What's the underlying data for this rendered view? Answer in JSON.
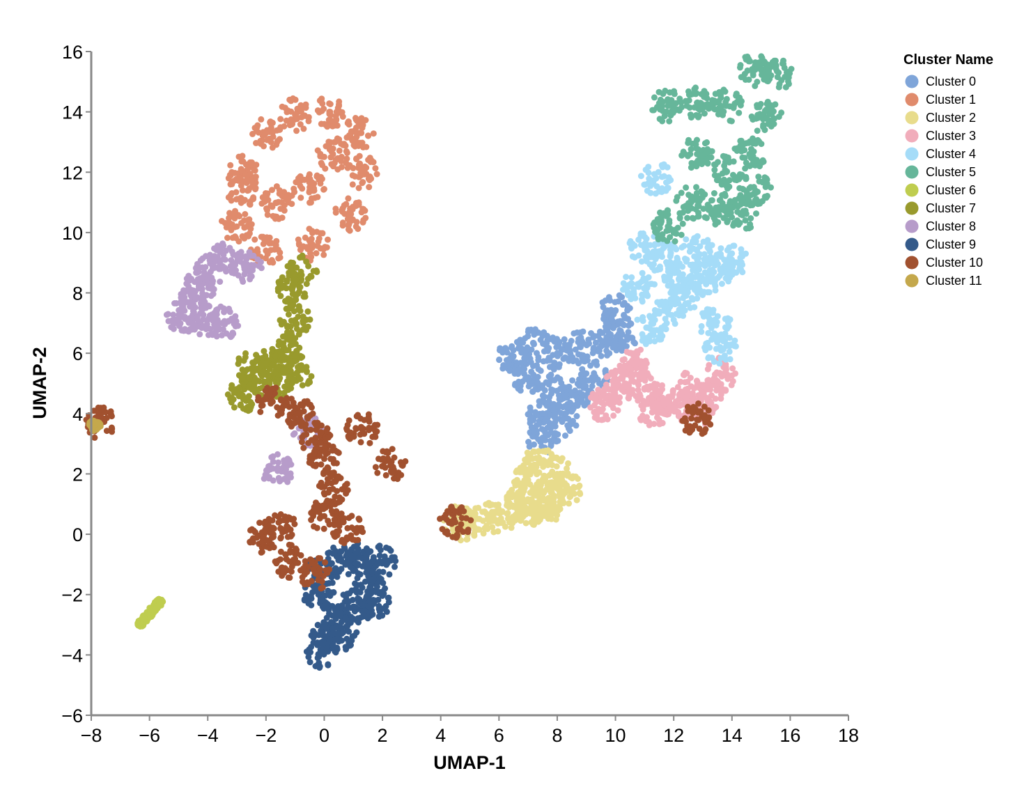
{
  "chart_data": {
    "type": "scatter",
    "xlabel": "UMAP-1",
    "ylabel": "UMAP-2",
    "xlim": [
      -8,
      18
    ],
    "ylim": [
      -6,
      16
    ],
    "xticks": [
      -8,
      -6,
      -4,
      -2,
      0,
      2,
      4,
      6,
      8,
      10,
      12,
      14,
      16,
      18
    ],
    "yticks": [
      -6,
      -4,
      -2,
      0,
      2,
      4,
      6,
      8,
      10,
      12,
      14,
      16
    ],
    "xtick_labels": [
      "−8",
      "−6",
      "−4",
      "−2",
      "0",
      "2",
      "4",
      "6",
      "8",
      "10",
      "12",
      "14",
      "16",
      "18"
    ],
    "ytick_labels": [
      "−6",
      "−4",
      "−2",
      "0",
      "2",
      "4",
      "6",
      "8",
      "10",
      "12",
      "14",
      "16"
    ],
    "grid": false,
    "legend": {
      "title": "Cluster Name",
      "placement": "top-right"
    },
    "series": [
      {
        "name": "Cluster 0",
        "color": "#7fa5d9",
        "center": [
          8.0,
          5.4
        ],
        "points": [
          [
            6.5,
            5.9
          ],
          [
            7.2,
            6.3
          ],
          [
            8.0,
            6.0
          ],
          [
            8.8,
            6.2
          ],
          [
            9.6,
            6.4
          ],
          [
            10.2,
            6.6
          ],
          [
            7.0,
            5.2
          ],
          [
            7.8,
            4.8
          ],
          [
            8.6,
            4.6
          ],
          [
            7.5,
            4.0
          ],
          [
            8.2,
            3.8
          ],
          [
            9.2,
            5.2
          ],
          [
            10.0,
            7.4
          ],
          [
            7.5,
            3.2
          ]
        ]
      },
      {
        "name": "Cluster 1",
        "color": "#e08b6c",
        "center": [
          -0.6,
          11.2
        ],
        "points": [
          [
            -2.8,
            12.0
          ],
          [
            -2.0,
            13.3
          ],
          [
            -1.0,
            13.9
          ],
          [
            0.2,
            14.0
          ],
          [
            1.2,
            13.3
          ],
          [
            1.3,
            12.0
          ],
          [
            0.9,
            10.6
          ],
          [
            -0.4,
            9.6
          ],
          [
            -2.0,
            9.4
          ],
          [
            -3.0,
            10.2
          ],
          [
            -2.8,
            11.4
          ],
          [
            -0.5,
            11.5
          ],
          [
            -1.6,
            11.0
          ],
          [
            0.3,
            12.6
          ]
        ]
      },
      {
        "name": "Cluster 2",
        "color": "#e8dc8c",
        "center": [
          7.3,
          1.3
        ],
        "points": [
          [
            4.8,
            0.3
          ],
          [
            5.6,
            0.5
          ],
          [
            6.3,
            0.7
          ],
          [
            7.0,
            0.8
          ],
          [
            7.7,
            1.2
          ],
          [
            8.3,
            1.5
          ],
          [
            8.0,
            2.0
          ],
          [
            7.4,
            2.4
          ],
          [
            7.0,
            1.8
          ],
          [
            6.8,
            1.2
          ],
          [
            7.6,
            0.9
          ],
          [
            4.6,
            0.4
          ]
        ]
      },
      {
        "name": "Cluster 3",
        "color": "#f1adbb",
        "center": [
          11.6,
          4.5
        ],
        "points": [
          [
            9.6,
            4.3
          ],
          [
            10.0,
            4.8
          ],
          [
            10.4,
            5.3
          ],
          [
            11.0,
            4.8
          ],
          [
            11.6,
            4.4
          ],
          [
            12.3,
            4.3
          ],
          [
            12.8,
            4.1
          ],
          [
            13.3,
            4.6
          ],
          [
            13.6,
            5.3
          ],
          [
            12.6,
            4.9
          ],
          [
            11.3,
            4.1
          ],
          [
            10.7,
            5.6
          ]
        ]
      },
      {
        "name": "Cluster 4",
        "color": "#a5dcf8",
        "center": [
          12.4,
          8.3
        ],
        "points": [
          [
            11.2,
            6.8
          ],
          [
            11.8,
            7.4
          ],
          [
            12.4,
            7.9
          ],
          [
            13.0,
            8.4
          ],
          [
            13.6,
            8.8
          ],
          [
            14.0,
            9.1
          ],
          [
            11.0,
            9.5
          ],
          [
            11.6,
            9.2
          ],
          [
            12.2,
            8.6
          ],
          [
            13.4,
            7.0
          ],
          [
            10.8,
            8.2
          ],
          [
            12.8,
            9.4
          ],
          [
            13.6,
            6.2
          ],
          [
            11.4,
            11.8
          ]
        ]
      },
      {
        "name": "Cluster 5",
        "color": "#66b69a",
        "center": [
          13.9,
          12.5
        ],
        "points": [
          [
            11.8,
            14.2
          ],
          [
            12.8,
            14.3
          ],
          [
            13.8,
            14.2
          ],
          [
            14.8,
            15.4
          ],
          [
            15.6,
            15.3
          ],
          [
            14.6,
            12.6
          ],
          [
            13.8,
            12.0
          ],
          [
            12.8,
            12.6
          ],
          [
            12.6,
            11.0
          ],
          [
            13.5,
            10.8
          ],
          [
            14.3,
            10.6
          ],
          [
            14.8,
            11.4
          ],
          [
            15.2,
            13.8
          ],
          [
            11.8,
            10.2
          ]
        ]
      },
      {
        "name": "Cluster 6",
        "color": "#bfcd4f",
        "center": [
          -6.0,
          -2.6
        ],
        "points": [
          [
            -6.3,
            -2.95
          ],
          [
            -6.15,
            -2.8
          ],
          [
            -6.0,
            -2.65
          ],
          [
            -5.9,
            -2.5
          ],
          [
            -5.75,
            -2.35
          ],
          [
            -5.65,
            -2.25
          ]
        ]
      },
      {
        "name": "Cluster 7",
        "color": "#999a2d",
        "center": [
          -1.6,
          5.7
        ],
        "points": [
          [
            -2.8,
            4.6
          ],
          [
            -2.3,
            5.1
          ],
          [
            -1.8,
            5.6
          ],
          [
            -1.3,
            6.1
          ],
          [
            -1.0,
            7.1
          ],
          [
            -1.1,
            8.1
          ],
          [
            -0.8,
            8.7
          ],
          [
            -2.5,
            5.5
          ],
          [
            -1.6,
            5.0
          ],
          [
            -0.9,
            5.4
          ]
        ]
      },
      {
        "name": "Cluster 8",
        "color": "#b79cca",
        "center": [
          -4.5,
          7.7
        ],
        "points": [
          [
            -4.9,
            7.2
          ],
          [
            -4.6,
            7.7
          ],
          [
            -4.3,
            8.2
          ],
          [
            -3.9,
            8.7
          ],
          [
            -3.4,
            9.1
          ],
          [
            -4.0,
            7.1
          ],
          [
            -3.5,
            7.0
          ],
          [
            -2.7,
            8.9
          ],
          [
            -1.6,
            2.1
          ],
          [
            -0.6,
            3.4
          ]
        ]
      },
      {
        "name": "Cluster 9",
        "color": "#345a8a",
        "center": [
          0.8,
          -2.0
        ],
        "points": [
          [
            -0.1,
            -1.3
          ],
          [
            0.6,
            -0.9
          ],
          [
            1.3,
            -0.8
          ],
          [
            1.9,
            -0.9
          ],
          [
            1.6,
            -1.7
          ],
          [
            1.0,
            -2.4
          ],
          [
            0.4,
            -2.8
          ],
          [
            0.1,
            -3.4
          ],
          [
            -0.1,
            -3.9
          ],
          [
            0.6,
            -3.3
          ],
          [
            1.7,
            -2.3
          ],
          [
            -0.2,
            -2.0
          ]
        ]
      },
      {
        "name": "Cluster 10",
        "color": "#a1512f",
        "center": [
          -0.5,
          1.5
        ],
        "points": [
          [
            -1.8,
            4.4
          ],
          [
            -0.9,
            4.0
          ],
          [
            -0.3,
            3.2
          ],
          [
            0.0,
            2.5
          ],
          [
            0.3,
            1.5
          ],
          [
            0.0,
            0.6
          ],
          [
            -1.5,
            0.2
          ],
          [
            -2.1,
            -0.1
          ],
          [
            -1.2,
            -0.9
          ],
          [
            -0.3,
            -1.3
          ],
          [
            0.8,
            0.2
          ],
          [
            1.3,
            3.5
          ],
          [
            2.3,
            2.3
          ],
          [
            4.5,
            0.4
          ],
          [
            -7.7,
            3.7
          ],
          [
            12.8,
            3.8
          ]
        ]
      },
      {
        "name": "Cluster 11",
        "color": "#c4a84c",
        "center": [
          -7.9,
          3.6
        ],
        "points": [
          [
            -7.9,
            3.55
          ],
          [
            -7.8,
            3.6
          ],
          [
            -7.95,
            3.65
          ]
        ]
      }
    ]
  }
}
